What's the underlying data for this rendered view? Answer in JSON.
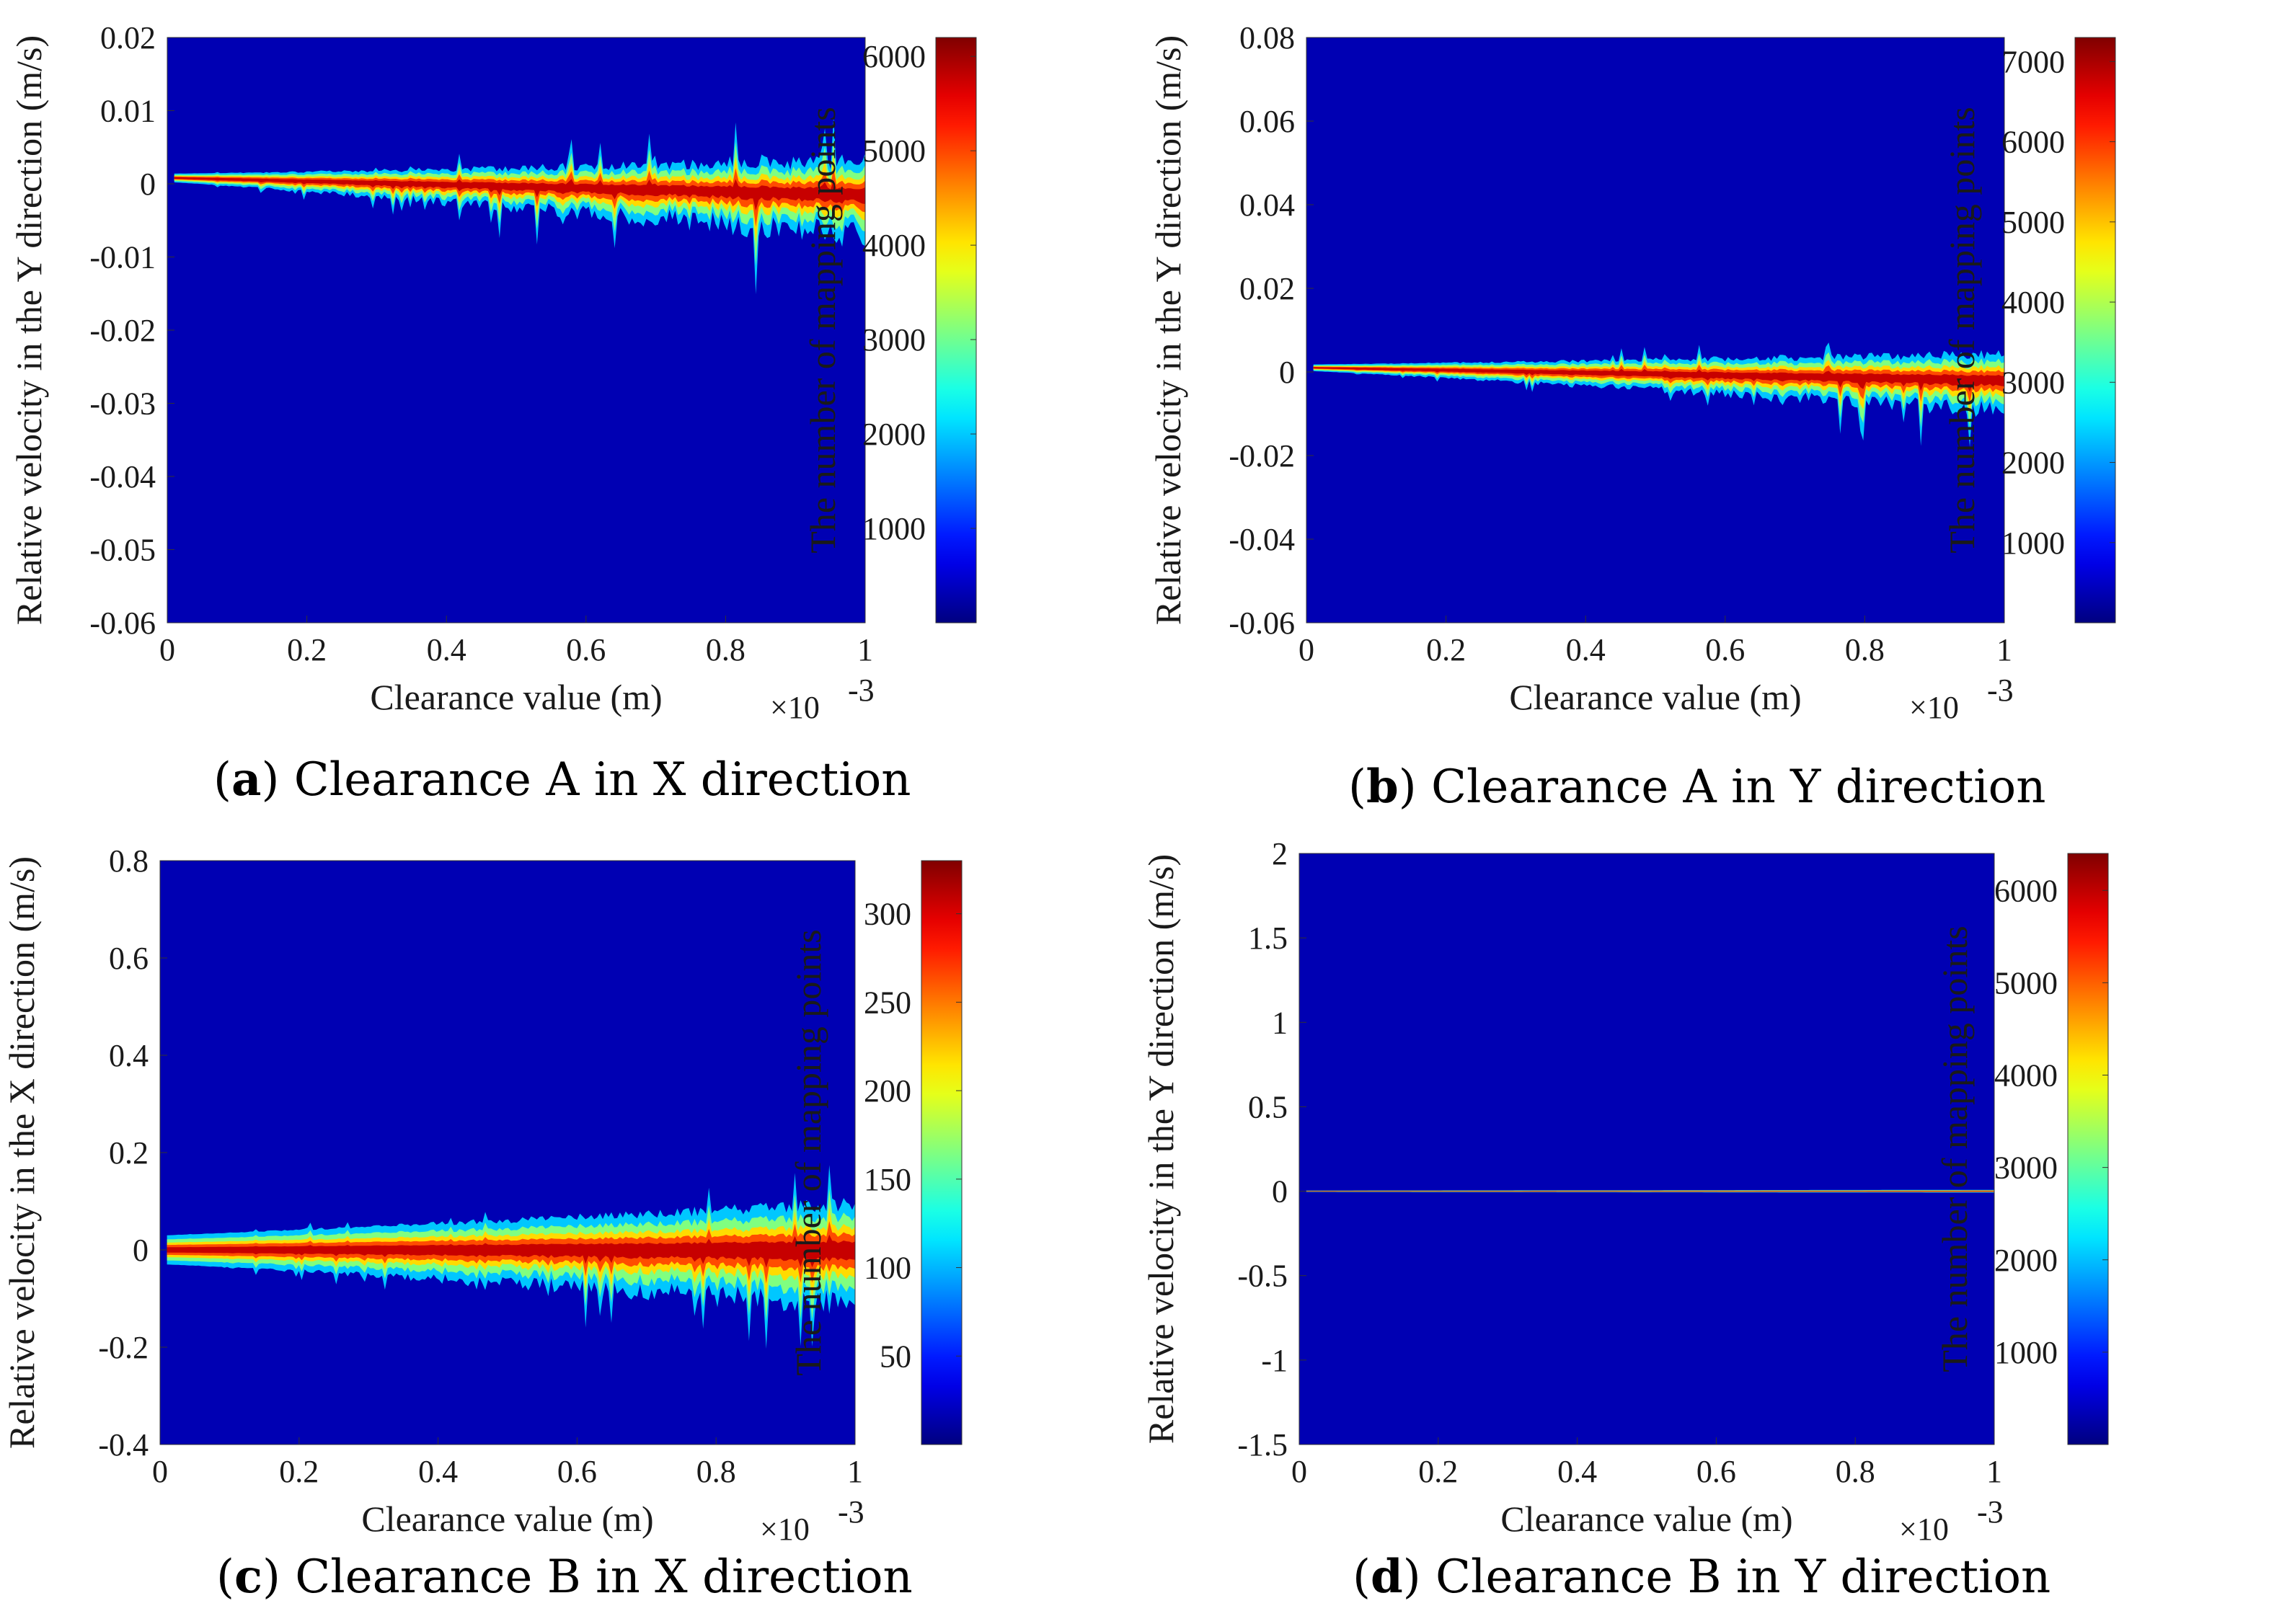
{
  "colormap": "jet",
  "chart_data": [
    {
      "type": "heatmap",
      "panel": "a",
      "caption": {
        "letter": "a",
        "text": "Clearance A in X direction"
      },
      "xlabel": "Clearance value (m)",
      "x_multiplier": "×10",
      "x_exponent": "-3",
      "ylabel": "Relative velocity in the Y direction (m/s)",
      "xlim": [
        0,
        1
      ],
      "ylim": [
        -0.06,
        0.02
      ],
      "xticks": [
        0,
        0.2,
        0.4,
        0.6,
        0.8,
        1
      ],
      "xtick_labels": [
        "0",
        "0.2",
        "0.4",
        "0.6",
        "0.8",
        "1"
      ],
      "yticks": [
        0.02,
        0.01,
        0,
        -0.01,
        -0.02,
        -0.03,
        -0.04,
        -0.05,
        -0.06
      ],
      "ytick_labels": [
        "0.02",
        "0.01",
        "0",
        "-0.01",
        "-0.02",
        "-0.03",
        "-0.04",
        "-0.05",
        "-0.06"
      ],
      "colorbar_label": "The number of mapping points",
      "colorbar_range": [
        0,
        6200
      ],
      "colorbar_ticks": [
        1000,
        2000,
        3000,
        4000,
        5000,
        6000
      ],
      "colorbar_tick_labels": [
        "1000",
        "2000",
        "3000",
        "4000",
        "5000",
        "6000"
      ],
      "band": {
        "center_start": 0.0008,
        "center_end": -0.0015,
        "width_start": 0.0006,
        "width_end": 0.0035,
        "spike_up": 0.009,
        "spike_down": 0.014
      }
    },
    {
      "type": "heatmap",
      "panel": "b",
      "caption": {
        "letter": "b",
        "text": "Clearance A in Y direction"
      },
      "xlabel": "Clearance value (m)",
      "x_multiplier": "×10",
      "x_exponent": "-3",
      "ylabel": "Relative velocity in the Y direction (m/s)",
      "xlim": [
        0,
        1
      ],
      "ylim": [
        -0.06,
        0.08
      ],
      "xticks": [
        0,
        0.2,
        0.4,
        0.6,
        0.8,
        1
      ],
      "xtick_labels": [
        "0",
        "0.2",
        "0.4",
        "0.6",
        "0.8",
        "1"
      ],
      "yticks": [
        0.08,
        0.06,
        0.04,
        0.02,
        0,
        -0.02,
        -0.04,
        -0.06
      ],
      "ytick_labels": [
        "0.08",
        "0.06",
        "0.04",
        "0.02",
        "0",
        "-0.02",
        "-0.04",
        "-0.06"
      ],
      "colorbar_label": "The number of mapping points",
      "colorbar_range": [
        0,
        7300
      ],
      "colorbar_ticks": [
        1000,
        2000,
        3000,
        4000,
        5000,
        6000,
        7000
      ],
      "colorbar_tick_labels": [
        "1000",
        "2000",
        "3000",
        "4000",
        "5000",
        "6000",
        "7000"
      ],
      "band": {
        "center_start": 0.001,
        "center_end": -0.002,
        "width_start": 0.0008,
        "width_end": 0.005,
        "spike_up": 0.01,
        "spike_down": 0.015
      }
    },
    {
      "type": "heatmap",
      "panel": "c",
      "caption": {
        "letter": "c",
        "text": "Clearance B in X direction"
      },
      "xlabel": "Clearance value (m)",
      "x_multiplier": "×10",
      "x_exponent": "-3",
      "ylabel": "Relative velocity in the X direction (m/s)",
      "xlim": [
        0,
        1
      ],
      "ylim": [
        -0.4,
        0.8
      ],
      "xticks": [
        0,
        0.2,
        0.4,
        0.6,
        0.8,
        1
      ],
      "xtick_labels": [
        "0",
        "0.2",
        "0.4",
        "0.6",
        "0.8",
        "1"
      ],
      "yticks": [
        0.8,
        0.6,
        0.4,
        0.2,
        0,
        -0.2,
        -0.4
      ],
      "ytick_labels": [
        "0.8",
        "0.6",
        "0.4",
        "0.2",
        "0",
        "-0.2",
        "-0.4"
      ],
      "colorbar_label": "The number of mapping points",
      "colorbar_range": [
        0,
        330
      ],
      "colorbar_ticks": [
        50,
        100,
        150,
        200,
        250,
        300
      ],
      "colorbar_tick_labels": [
        "50",
        "100",
        "150",
        "200",
        "250",
        "300"
      ],
      "band": {
        "center_start": 0.0,
        "center_end": 0.0,
        "width_start": 0.03,
        "width_end": 0.08,
        "spike_up": 0.12,
        "spike_down": 0.22
      }
    },
    {
      "type": "heatmap",
      "panel": "d",
      "caption": {
        "letter": "d",
        "text": "Clearance B in Y direction"
      },
      "xlabel": "Clearance value (m)",
      "x_multiplier": "×10",
      "x_exponent": "-3",
      "ylabel": "Relative velocity in the Y direction (m/s)",
      "xlim": [
        0,
        1
      ],
      "ylim": [
        -1.5,
        2
      ],
      "xticks": [
        0,
        0.2,
        0.4,
        0.6,
        0.8,
        1
      ],
      "xtick_labels": [
        "0",
        "0.2",
        "0.4",
        "0.6",
        "0.8",
        "1"
      ],
      "yticks": [
        2,
        1.5,
        1,
        0.5,
        0,
        -0.5,
        -1,
        -1.5
      ],
      "ytick_labels": [
        "2",
        "1.5",
        "1",
        "0.5",
        "0",
        "-0.5",
        "-1",
        "-1.5"
      ],
      "colorbar_label": "The number of mapping points",
      "colorbar_range": [
        0,
        6400
      ],
      "colorbar_ticks": [
        1000,
        2000,
        3000,
        4000,
        5000,
        6000
      ],
      "colorbar_tick_labels": [
        "1000",
        "2000",
        "3000",
        "4000",
        "5000",
        "6000"
      ],
      "band": {
        "center_start": 0.0,
        "center_end": 0.0,
        "width_start": 0.004,
        "width_end": 0.008,
        "spike_up": 0.0,
        "spike_down": 0.0
      }
    }
  ]
}
